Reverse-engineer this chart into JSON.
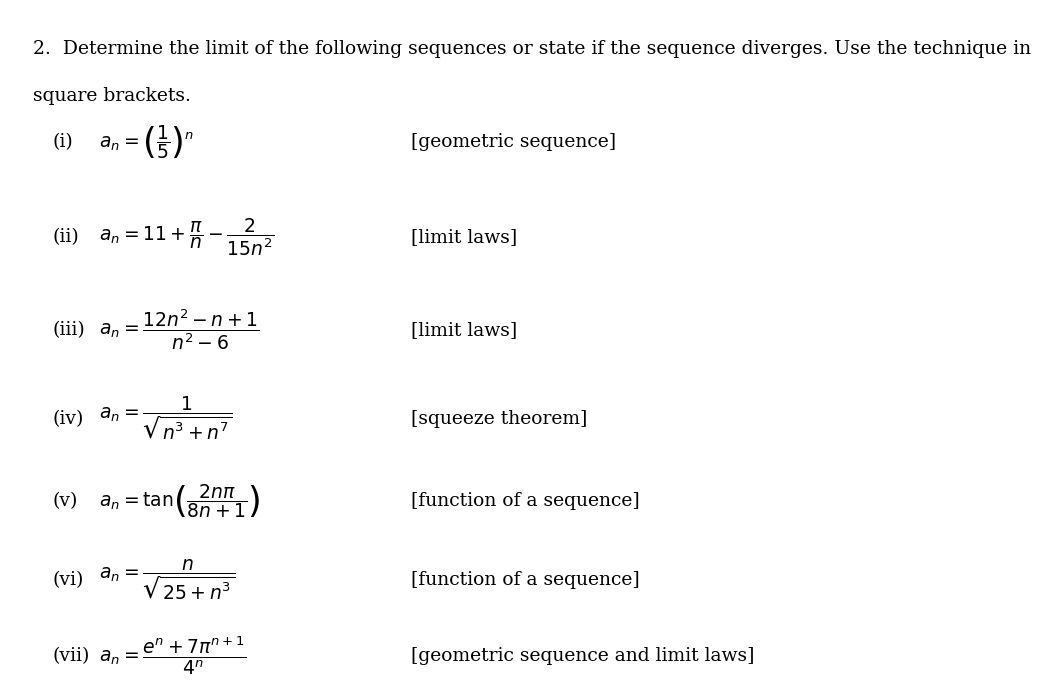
{
  "background_color": "#ffffff",
  "title_text": "2.  Determine the limit of the following sequences or state if the sequence diverges. Use the technique in\nsquare brackets.",
  "items": [
    {
      "label": "(i)",
      "formula": "$a_n = \\left(\\dfrac{1}{5}\\right)^{n}$",
      "technique": "[geometric sequence]"
    },
    {
      "label": "(ii)",
      "formula": "$a_n = 11 + \\dfrac{\\pi}{n} - \\dfrac{2}{15n^2}$",
      "technique": "[limit laws]"
    },
    {
      "label": "(iii)",
      "formula": "$a_n = \\dfrac{12n^2 - n + 1}{n^2 - 6}$",
      "technique": "[limit laws]"
    },
    {
      "label": "(iv)",
      "formula": "$a_n = \\dfrac{1}{\\sqrt{n^3 + n^7}}$",
      "technique": "[squeeze theorem]"
    },
    {
      "label": "(v)",
      "formula": "$a_n = \\tan\\!\\left(\\dfrac{2n\\pi}{8n+1}\\right)$",
      "technique": "[function of a sequence]"
    },
    {
      "label": "(vi)",
      "formula": "$a_n = \\dfrac{n}{\\sqrt{25 + n^3}}$",
      "technique": "[function of a sequence]"
    },
    {
      "label": "(vii)",
      "formula": "$a_n = \\dfrac{e^n + 7\\pi^{n+1}}{4^n}$",
      "technique": "[geometric sequence and limit laws]"
    }
  ],
  "title_fontsize": 13.5,
  "label_fontsize": 13.5,
  "formula_fontsize": 13.5,
  "technique_fontsize": 13.5,
  "text_color": "#000000"
}
